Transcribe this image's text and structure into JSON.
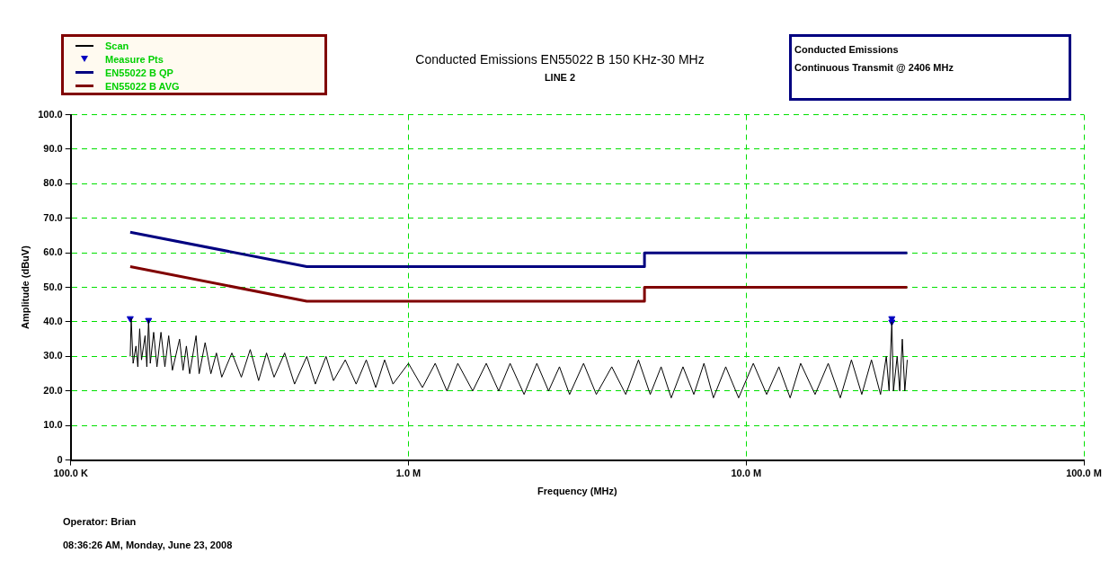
{
  "chart_data": {
    "type": "line",
    "title": "Conducted Emissions EN55022 B 150 KHz-30 MHz",
    "subtitle": "LINE 2",
    "xlabel": "Frequency (MHz)",
    "ylabel": "Amplitude (dBuV)",
    "log": "x",
    "xlim": [
      0.1,
      100
    ],
    "xticks": [
      {
        "value": 0.1,
        "label": "100.0 K"
      },
      {
        "value": 1,
        "label": "1.0 M"
      },
      {
        "value": 10,
        "label": "10.0 M"
      },
      {
        "value": 100,
        "label": "100.0 M"
      }
    ],
    "ylim": [
      0,
      100
    ],
    "yticks": [
      0,
      {
        "value": 10,
        "label": "10.0"
      },
      {
        "value": 20,
        "label": "20.0"
      },
      {
        "value": 30,
        "label": "30.0"
      },
      {
        "value": 40,
        "label": "40.0"
      },
      {
        "value": 50,
        "label": "50.0"
      },
      {
        "value": 60,
        "label": "60.0"
      },
      {
        "value": 70,
        "label": "70.0"
      },
      {
        "value": 80,
        "label": "80.0"
      },
      {
        "value": 90,
        "label": "90.0"
      },
      {
        "value": 100,
        "label": "100.0"
      }
    ],
    "grid": true,
    "legend": "top left",
    "series": [
      {
        "name": "Scan",
        "type": "line",
        "color": "#000000",
        "x": [
          0.15,
          0.151,
          0.153,
          0.156,
          0.158,
          0.16,
          0.162,
          0.166,
          0.168,
          0.17,
          0.172,
          0.176,
          0.18,
          0.185,
          0.19,
          0.195,
          0.2,
          0.21,
          0.215,
          0.22,
          0.225,
          0.235,
          0.24,
          0.25,
          0.26,
          0.27,
          0.28,
          0.3,
          0.32,
          0.34,
          0.36,
          0.38,
          0.4,
          0.43,
          0.46,
          0.5,
          0.53,
          0.57,
          0.6,
          0.65,
          0.7,
          0.75,
          0.8,
          0.85,
          0.9,
          1.0,
          1.1,
          1.2,
          1.3,
          1.4,
          1.55,
          1.7,
          1.85,
          2.0,
          2.2,
          2.4,
          2.6,
          2.8,
          3.0,
          3.3,
          3.6,
          4.0,
          4.4,
          4.8,
          5.2,
          5.6,
          6.0,
          6.5,
          7.0,
          7.5,
          8.0,
          8.7,
          9.5,
          10.5,
          11.5,
          12.5,
          13.5,
          14.5,
          16,
          17.5,
          19,
          20.5,
          22,
          23.5,
          25,
          26,
          26.5,
          27,
          27.3,
          28,
          28.5,
          29,
          29.5,
          30
        ],
        "values": [
          30,
          41,
          28,
          33,
          27,
          38,
          29,
          36,
          27,
          40.5,
          28,
          37,
          27,
          37,
          27,
          36,
          26,
          35,
          26,
          33,
          25,
          36,
          25,
          34,
          25,
          31,
          24,
          31,
          24,
          32,
          23,
          31,
          24,
          31,
          22,
          30,
          22,
          30,
          23,
          29,
          22,
          29,
          21,
          29,
          22,
          28,
          21,
          28,
          20,
          28,
          20,
          28,
          20,
          28,
          19,
          28,
          20,
          27,
          19,
          28,
          19,
          27,
          19,
          29,
          19,
          27,
          18,
          27,
          19,
          28,
          18,
          27,
          18,
          28,
          19,
          27,
          18,
          28,
          19,
          28,
          18,
          29,
          19,
          29,
          19,
          30,
          20,
          40,
          20,
          30,
          20,
          35,
          20,
          29
        ]
      },
      {
        "name": "Measure Pts",
        "type": "scatter",
        "color": "#0000c0",
        "marker": "triangle",
        "x": [
          0.15,
          0.17,
          27,
          27
        ],
        "values": [
          41,
          40.5,
          41,
          40
        ]
      },
      {
        "name": "EN55022 B QP",
        "type": "line",
        "color": "#000080",
        "x": [
          0.15,
          0.5,
          5,
          5,
          30
        ],
        "values": [
          66,
          56,
          56,
          60,
          60
        ]
      },
      {
        "name": "EN55022 B AVG",
        "type": "line",
        "color": "#800000",
        "x": [
          0.15,
          0.5,
          5,
          5,
          30
        ],
        "values": [
          56,
          46,
          46,
          50,
          50
        ]
      }
    ],
    "annotations": [
      "Conducted Emissions",
      "Continuous Transmit @ 2406 MHz",
      "Operator: Brian",
      "08:36:26 AM, Monday, June 23, 2008"
    ]
  }
}
